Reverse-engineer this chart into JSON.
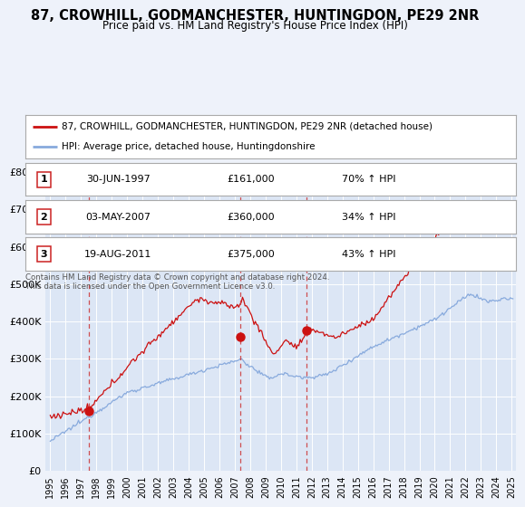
{
  "title": "87, CROWHILL, GODMANCHESTER, HUNTINGDON, PE29 2NR",
  "subtitle": "Price paid vs. HM Land Registry's House Price Index (HPI)",
  "background_color": "#eef2fa",
  "plot_bg_color": "#dce6f5",
  "grid_color": "#ffffff",
  "red_line_color": "#cc1111",
  "blue_line_color": "#88aadd",
  "sale_points": [
    {
      "index": 1,
      "year": 1997.5,
      "value": 161000,
      "label": "1"
    },
    {
      "index": 2,
      "year": 2007.33,
      "value": 360000,
      "label": "2"
    },
    {
      "index": 3,
      "year": 2011.63,
      "value": 375000,
      "label": "3"
    }
  ],
  "ylim": [
    0,
    800000
  ],
  "xlim": [
    1994.7,
    2025.3
  ],
  "yticks": [
    0,
    100000,
    200000,
    300000,
    400000,
    500000,
    600000,
    700000,
    800000
  ],
  "ytick_labels": [
    "£0",
    "£100K",
    "£200K",
    "£300K",
    "£400K",
    "£500K",
    "£600K",
    "£700K",
    "£800K"
  ],
  "legend_entries": [
    "87, CROWHILL, GODMANCHESTER, HUNTINGDON, PE29 2NR (detached house)",
    "HPI: Average price, detached house, Huntingdonshire"
  ],
  "table_rows": [
    {
      "num": "1",
      "date": "30-JUN-1997",
      "price": "£161,000",
      "change": "70% ↑ HPI"
    },
    {
      "num": "2",
      "date": "03-MAY-2007",
      "price": "£360,000",
      "change": "34% ↑ HPI"
    },
    {
      "num": "3",
      "date": "19-AUG-2011",
      "price": "£375,000",
      "change": "43% ↑ HPI"
    }
  ],
  "footnote1": "Contains HM Land Registry data © Crown copyright and database right 2024.",
  "footnote2": "This data is licensed under the Open Government Licence v3.0."
}
